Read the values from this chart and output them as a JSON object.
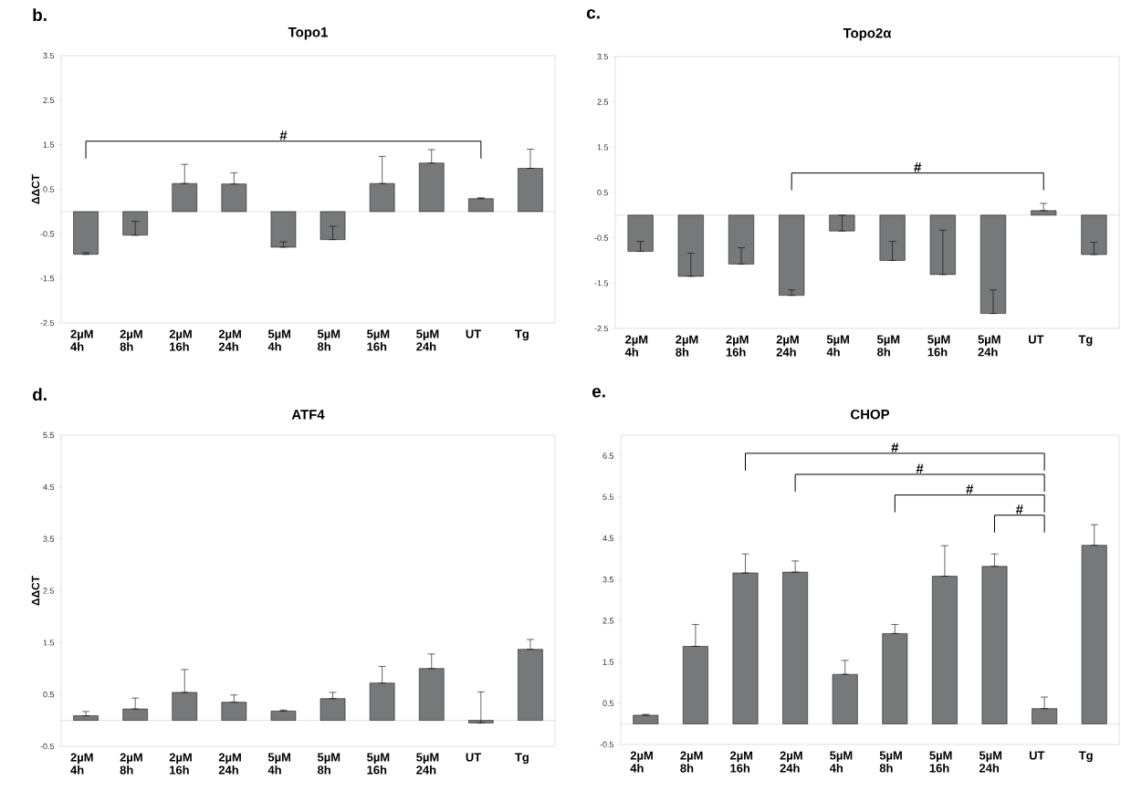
{
  "chart_data": [
    {
      "type": "bar",
      "title": "Topo1",
      "ylabel": "ΔΔCT",
      "annotations": [
        "b.",
        "#"
      ],
      "categories": [
        "2µM 4h",
        "2µM 8h",
        "2µM 16h",
        "2µM 24h",
        "5µM 4h",
        "5µM 8h",
        "5µM 16h",
        "5µM 24h",
        "UT",
        "Tg"
      ],
      "values": [
        -0.96,
        -0.53,
        0.63,
        0.62,
        -0.8,
        -0.63,
        0.63,
        1.09,
        0.29,
        0.97
      ],
      "errors": [
        [
          -0.96,
          -0.92
        ],
        [
          -0.53,
          -0.22
        ],
        [
          0.63,
          1.06
        ],
        [
          0.62,
          0.87
        ],
        [
          -0.8,
          -0.68
        ],
        [
          -0.63,
          -0.33
        ],
        [
          0.63,
          1.24
        ],
        [
          1.09,
          1.39
        ],
        [
          0.29,
          0.31
        ],
        [
          0.97,
          1.4
        ]
      ],
      "color": "#76787a",
      "ylim": [
        -2.5,
        3.5
      ],
      "yticks": [
        -2.5,
        -1.5,
        -0.5,
        0.5,
        1.5,
        2.5,
        3.5
      ]
    },
    {
      "type": "bar",
      "title": "Topo2α",
      "annotations": [
        "c.",
        "#"
      ],
      "categories": [
        "2µM 4h",
        "2µM 8h",
        "2µM 16h",
        "2µM 24h",
        "5µM 4h",
        "5µM 8h",
        "5µM 16h",
        "5µM 24h",
        "UT",
        "Tg"
      ],
      "values": [
        -0.8,
        -1.35,
        -1.08,
        -1.77,
        -0.35,
        -1.0,
        -1.31,
        -2.17,
        0.1,
        -0.87
      ],
      "errors": [
        [
          -0.8,
          -0.58
        ],
        [
          -1.35,
          -0.84
        ],
        [
          -1.08,
          -0.72
        ],
        [
          -1.77,
          -1.65
        ],
        [
          -0.35,
          0.0
        ],
        [
          -1.0,
          -0.58
        ],
        [
          -1.31,
          -0.33
        ],
        [
          -2.17,
          -1.65
        ],
        [
          0.1,
          0.26
        ],
        [
          -0.87,
          -0.6
        ]
      ],
      "color": "#76787a",
      "ylim": [
        -2.5,
        3.5
      ],
      "yticks": [
        -2.5,
        -1.5,
        -0.5,
        0.5,
        1.5,
        2.5,
        3.5
      ]
    },
    {
      "type": "bar",
      "title": "ATF4",
      "ylabel": "ΔΔCT",
      "annotations": [
        "d."
      ],
      "categories": [
        "2µM 4h",
        "2µM 8h",
        "2µM 16h",
        "2µM 24h",
        "5µM 4h",
        "5µM 8h",
        "5µM 16h",
        "5µM 24h",
        "UT",
        "Tg"
      ],
      "values": [
        0.09,
        0.22,
        0.54,
        0.35,
        0.18,
        0.42,
        0.72,
        1.0,
        -0.05,
        1.37
      ],
      "errors": [
        [
          0.09,
          0.17
        ],
        [
          0.22,
          0.43
        ],
        [
          0.54,
          0.98
        ],
        [
          0.35,
          0.49
        ],
        [
          0.18,
          0.2
        ],
        [
          0.42,
          0.54
        ],
        [
          0.72,
          1.04
        ],
        [
          1.0,
          1.28
        ],
        [
          -0.05,
          0.55
        ],
        [
          1.37,
          1.56
        ]
      ],
      "color": "#76787a",
      "ylim": [
        -0.5,
        5.5
      ],
      "yticks": [
        -0.5,
        0.5,
        1.5,
        2.5,
        3.5,
        4.5,
        5.5
      ]
    },
    {
      "type": "bar",
      "title": "CHOP",
      "annotations": [
        "e.",
        "#",
        "#",
        "#",
        "#"
      ],
      "categories": [
        "2µM 4h",
        "2µM 8h",
        "2µM 16h",
        "2µM 24h",
        "5µM 4h",
        "5µM 8h",
        "5µM 16h",
        "5µM 24h",
        "UT",
        "Tg"
      ],
      "values": [
        0.21,
        1.88,
        3.66,
        3.68,
        1.2,
        2.19,
        3.58,
        3.82,
        0.37,
        4.33
      ],
      "errors": [
        [
          0.21,
          0.23
        ],
        [
          1.88,
          2.41
        ],
        [
          3.66,
          4.12
        ],
        [
          3.68,
          3.95
        ],
        [
          1.2,
          1.54
        ],
        [
          2.19,
          2.41
        ],
        [
          3.58,
          4.32
        ],
        [
          3.82,
          4.12
        ],
        [
          0.37,
          0.65
        ],
        [
          4.33,
          4.83
        ]
      ],
      "color": "#76787a",
      "ylim": [
        -0.5,
        7.0
      ],
      "yticks": [
        -0.5,
        0.5,
        1.5,
        2.5,
        3.5,
        4.5,
        5.5,
        6.5
      ]
    }
  ]
}
